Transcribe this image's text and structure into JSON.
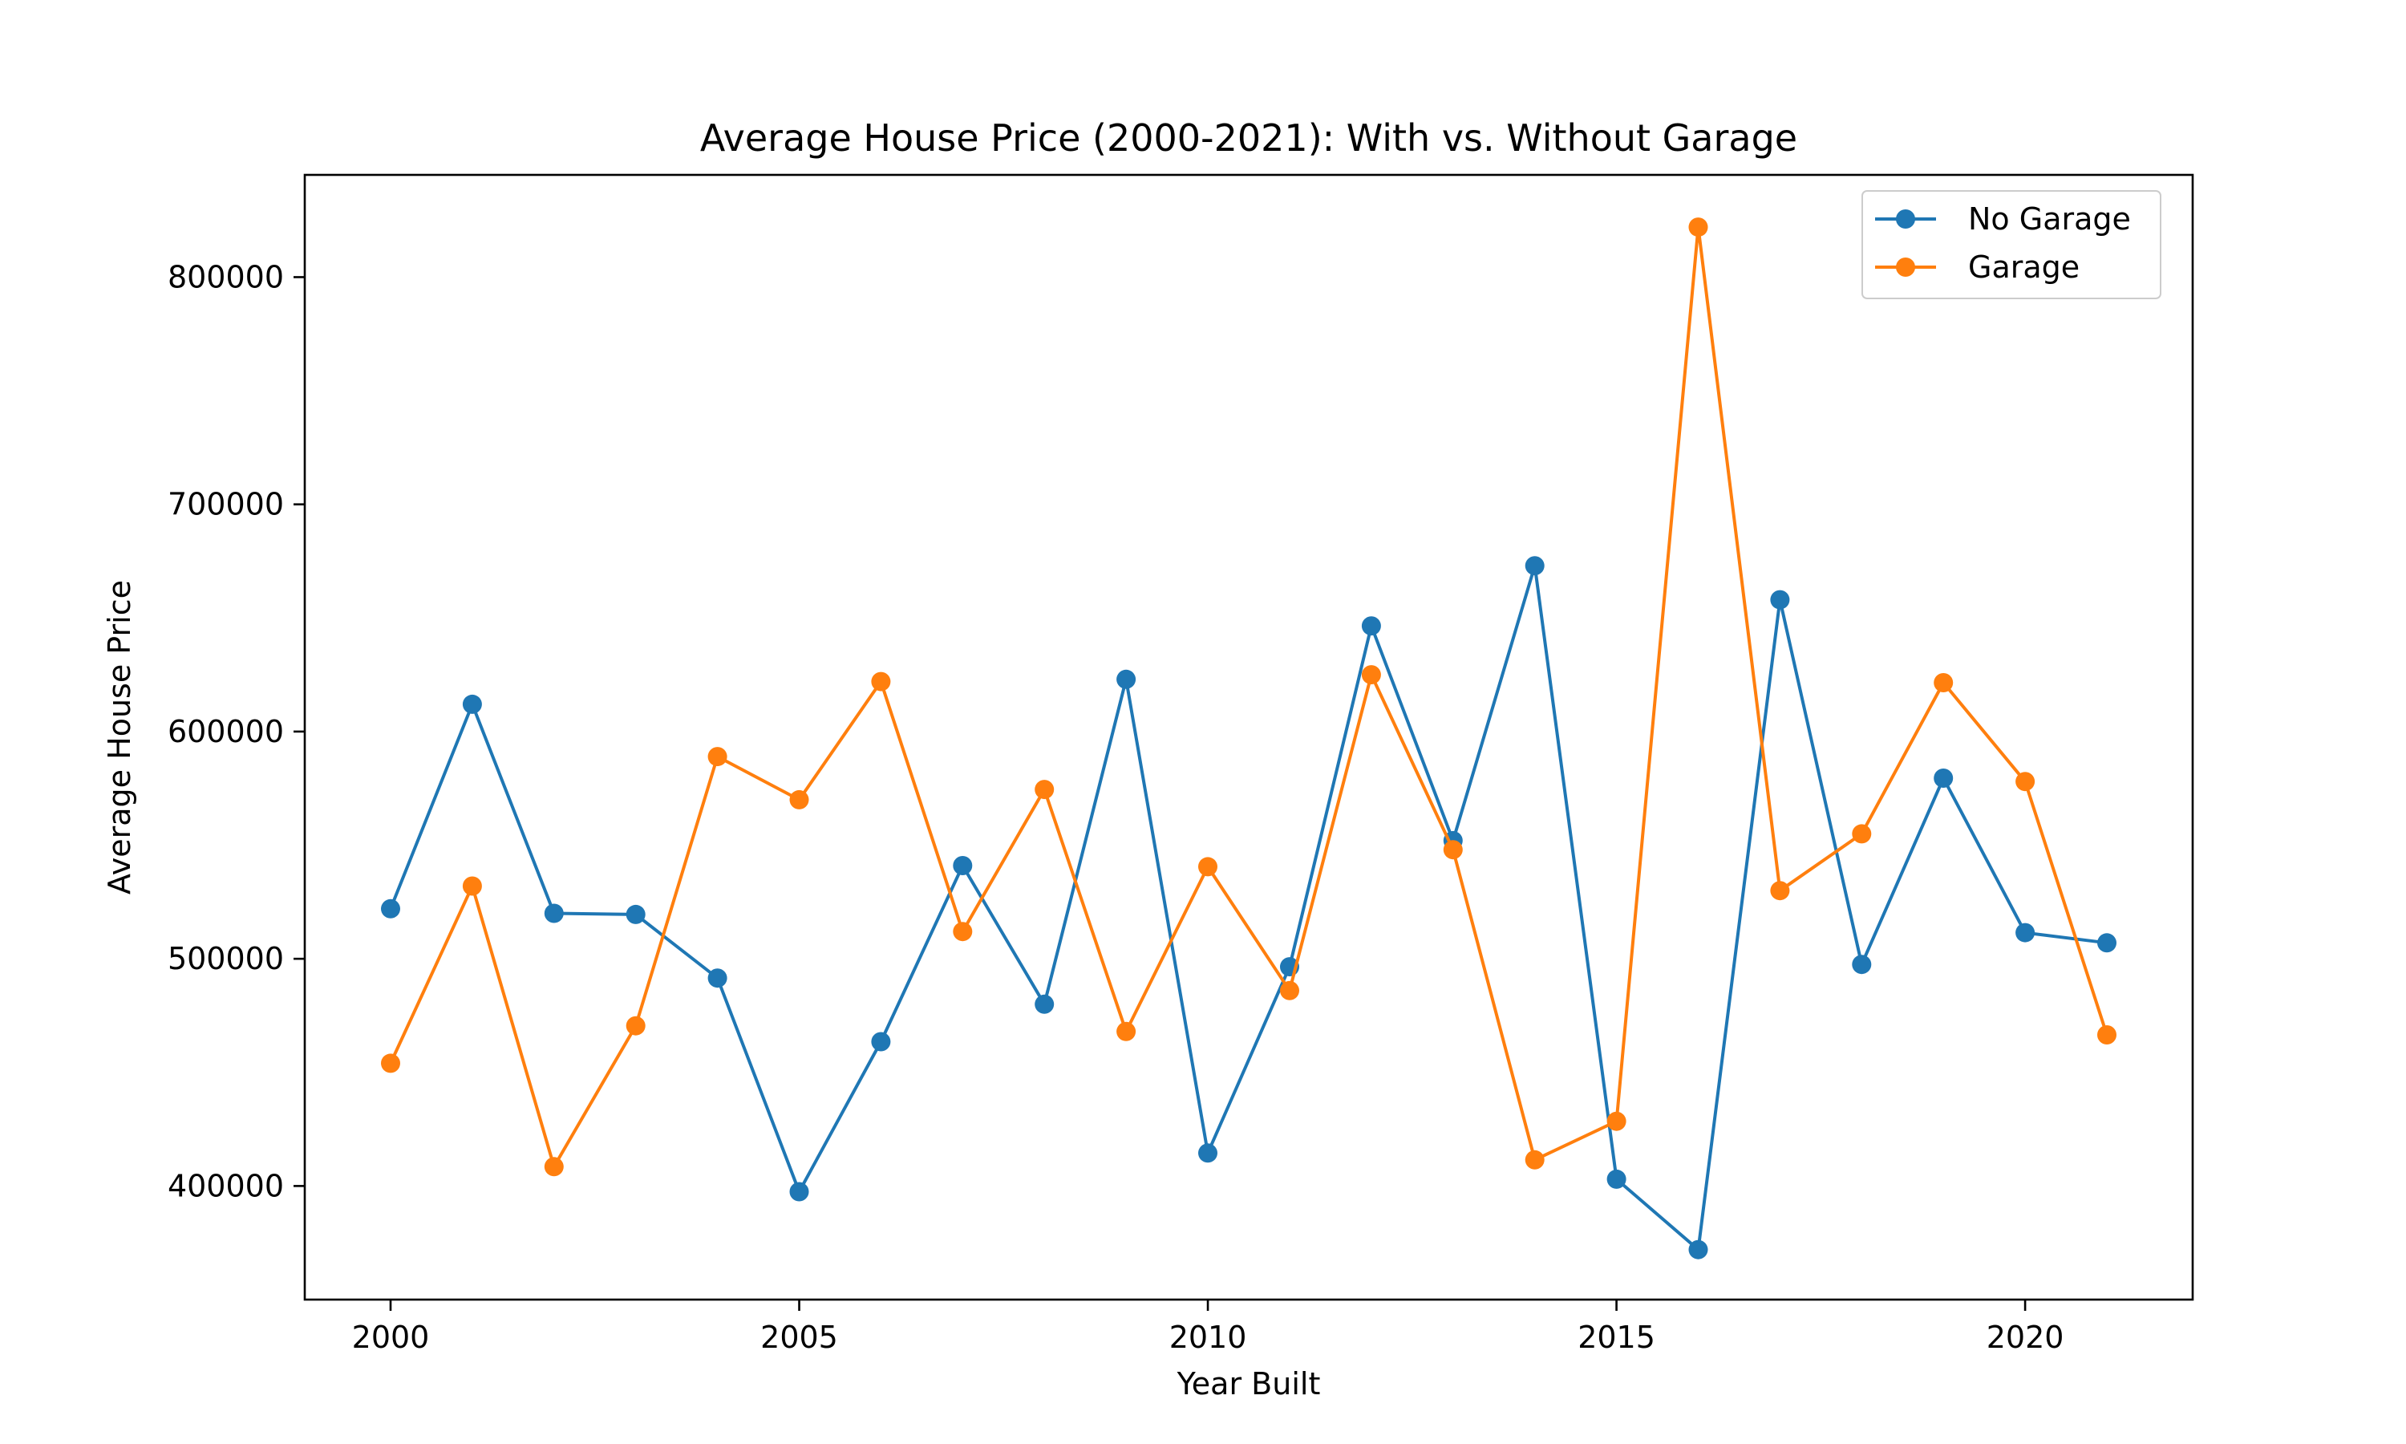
{
  "chart_data": {
    "type": "line",
    "title": "Average House Price (2000-2021): With vs. Without Garage",
    "xlabel": "Year Built",
    "ylabel": "Average House Price",
    "x": [
      2000,
      2001,
      2002,
      2003,
      2004,
      2005,
      2006,
      2007,
      2008,
      2009,
      2010,
      2011,
      2012,
      2013,
      2014,
      2015,
      2016,
      2017,
      2018,
      2019,
      2020,
      2021
    ],
    "xlim": [
      1998.95,
      2022.05
    ],
    "ylim": [
      350000,
      845000
    ],
    "xticks": [
      2000,
      2005,
      2010,
      2015,
      2020
    ],
    "yticks": [
      400000,
      500000,
      600000,
      700000,
      800000
    ],
    "grid": false,
    "legend_position": "top-right",
    "series": [
      {
        "name": "No Garage",
        "color": "#1f77b4",
        "marker": "circle",
        "values": [
          522000,
          612000,
          520000,
          519500,
          491500,
          397500,
          463500,
          541000,
          480000,
          623000,
          414500,
          496500,
          646500,
          552000,
          673000,
          403000,
          372000,
          658000,
          497500,
          579500,
          511500,
          507000
        ]
      },
      {
        "name": "Garage",
        "color": "#ff7f0e",
        "marker": "circle",
        "values": [
          454000,
          532000,
          408500,
          470500,
          589000,
          570000,
          622000,
          512000,
          574500,
          468000,
          540500,
          486000,
          625000,
          548000,
          411500,
          428500,
          822000,
          530000,
          555000,
          621500,
          578000,
          466500
        ]
      }
    ]
  }
}
